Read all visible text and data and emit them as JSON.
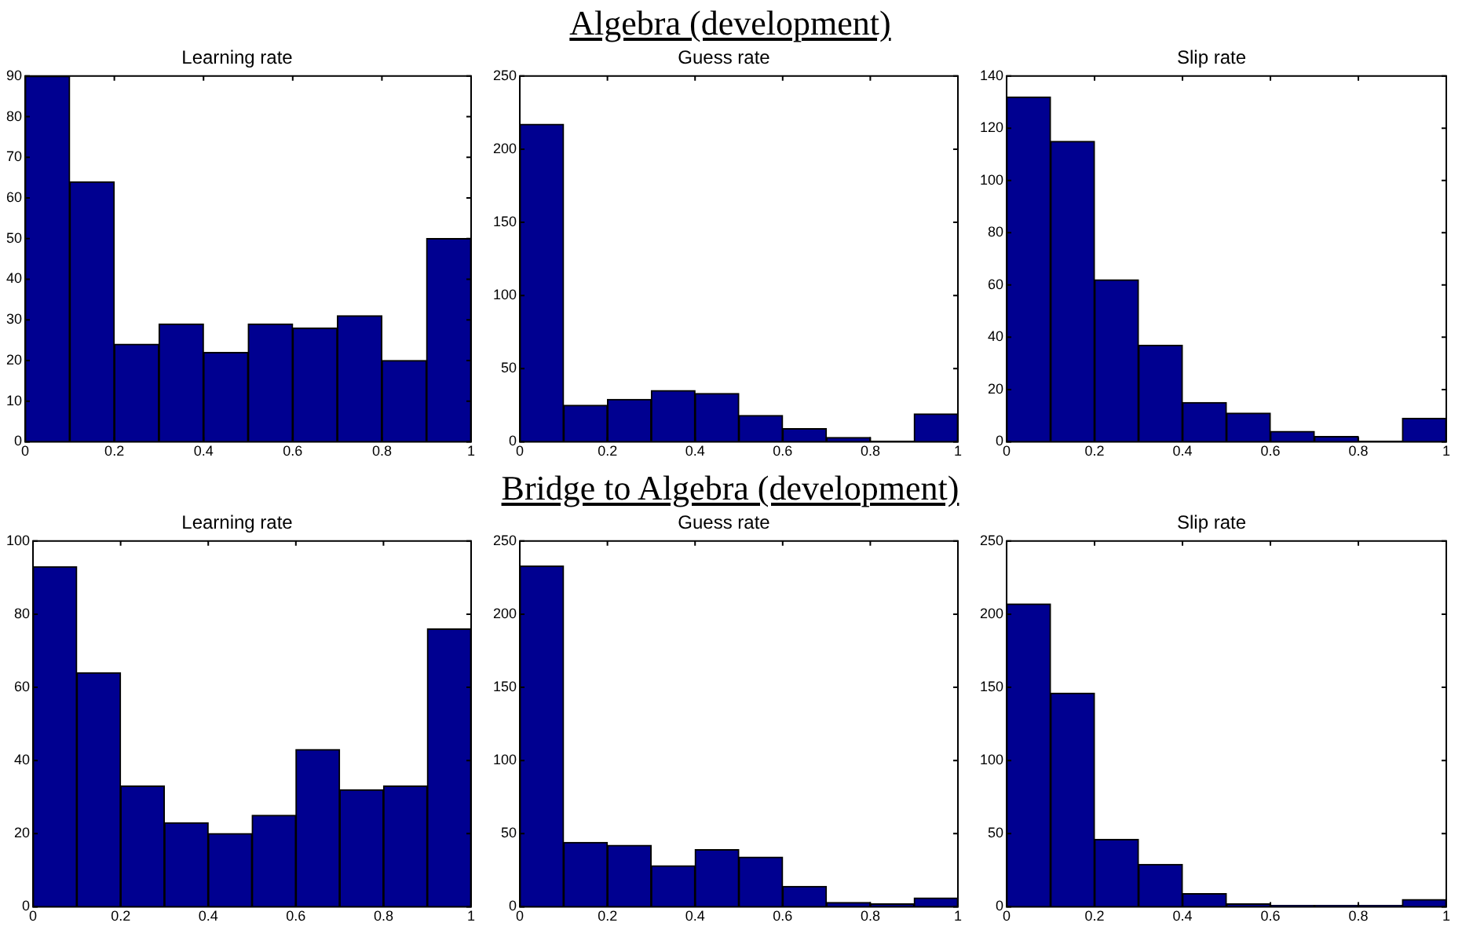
{
  "chart_data": [
    {
      "type": "histogram",
      "title": "Learning rate",
      "bins": [
        0,
        0.1,
        0.2,
        0.3,
        0.4,
        0.5,
        0.6,
        0.7,
        0.8,
        0.9,
        1
      ],
      "values": [
        90,
        64,
        24,
        29,
        22,
        29,
        28,
        31,
        20,
        50
      ],
      "color": "#000090",
      "xlim": [
        0,
        1
      ],
      "xticks": [
        0,
        0.2,
        0.4,
        0.6,
        0.8,
        1
      ],
      "ylim": [
        0,
        90
      ],
      "yticks": [
        0,
        10,
        20,
        30,
        40,
        50,
        60,
        70,
        80,
        90
      ]
    },
    {
      "type": "histogram",
      "title": "Guess rate",
      "annotations": [
        "Algebra (development)"
      ],
      "bins": [
        0,
        0.1,
        0.2,
        0.3,
        0.4,
        0.5,
        0.6,
        0.7,
        0.8,
        0.9,
        1
      ],
      "values": [
        217,
        25,
        29,
        35,
        33,
        18,
        9,
        3,
        0,
        19
      ],
      "color": "#000090",
      "xlim": [
        0,
        1
      ],
      "xticks": [
        0,
        0.2,
        0.4,
        0.6,
        0.8,
        1
      ],
      "ylim": [
        0,
        250
      ],
      "yticks": [
        0,
        50,
        100,
        150,
        200,
        250
      ]
    },
    {
      "type": "histogram",
      "title": "Slip rate",
      "bins": [
        0,
        0.1,
        0.2,
        0.3,
        0.4,
        0.5,
        0.6,
        0.7,
        0.8,
        0.9,
        1
      ],
      "values": [
        132,
        115,
        62,
        37,
        15,
        11,
        4,
        2,
        0,
        9
      ],
      "color": "#000090",
      "xlim": [
        0,
        1
      ],
      "xticks": [
        0,
        0.2,
        0.4,
        0.6,
        0.8,
        1
      ],
      "ylim": [
        0,
        140
      ],
      "yticks": [
        0,
        20,
        40,
        60,
        80,
        100,
        120,
        140
      ]
    },
    {
      "type": "histogram",
      "title": "Learning rate",
      "bins": [
        0,
        0.1,
        0.2,
        0.3,
        0.4,
        0.5,
        0.6,
        0.7,
        0.8,
        0.9,
        1
      ],
      "values": [
        93,
        64,
        33,
        23,
        20,
        25,
        43,
        32,
        33,
        76
      ],
      "color": "#000090",
      "xlim": [
        0,
        1
      ],
      "xticks": [
        0,
        0.2,
        0.4,
        0.6,
        0.8,
        1
      ],
      "ylim": [
        0,
        100
      ],
      "yticks": [
        0,
        20,
        40,
        60,
        80,
        100
      ]
    },
    {
      "type": "histogram",
      "title": "Guess rate",
      "annotations": [
        "Bridge to Algebra (development)"
      ],
      "bins": [
        0,
        0.1,
        0.2,
        0.3,
        0.4,
        0.5,
        0.6,
        0.7,
        0.8,
        0.9,
        1
      ],
      "values": [
        233,
        44,
        42,
        28,
        39,
        34,
        14,
        3,
        2,
        6
      ],
      "color": "#000090",
      "xlim": [
        0,
        1
      ],
      "xticks": [
        0,
        0.2,
        0.4,
        0.6,
        0.8,
        1
      ],
      "ylim": [
        0,
        250
      ],
      "yticks": [
        0,
        50,
        100,
        150,
        200,
        250
      ]
    },
    {
      "type": "histogram",
      "title": "Slip rate",
      "bins": [
        0,
        0.1,
        0.2,
        0.3,
        0.4,
        0.5,
        0.6,
        0.7,
        0.8,
        0.9,
        1
      ],
      "values": [
        207,
        146,
        46,
        29,
        9,
        2,
        1,
        1,
        1,
        5
      ],
      "color": "#000090",
      "xlim": [
        0,
        1
      ],
      "xticks": [
        0,
        0.2,
        0.4,
        0.6,
        0.8,
        1
      ],
      "ylim": [
        0,
        250
      ],
      "yticks": [
        0,
        50,
        100,
        150,
        200,
        250
      ]
    }
  ]
}
